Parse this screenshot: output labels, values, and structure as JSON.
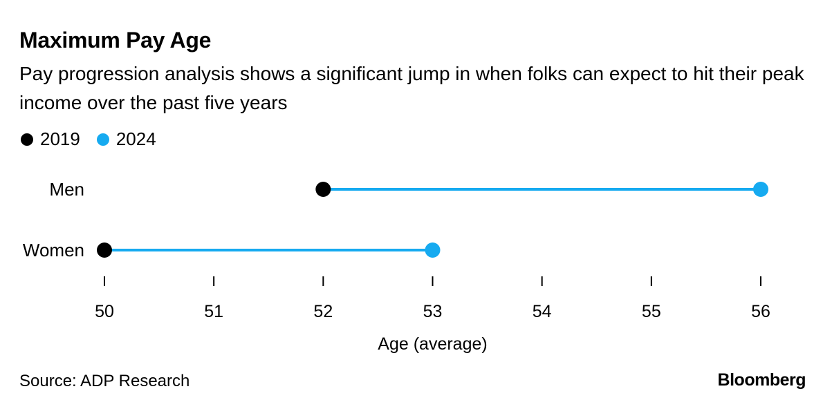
{
  "header": {
    "title": "Maximum Pay Age",
    "subtitle": "Pay progression analysis shows a significant jump in when folks can expect to hit their peak income over the past five years"
  },
  "legend": [
    {
      "label": "2019",
      "color": "#000000"
    },
    {
      "label": "2024",
      "color": "#16aaf0"
    }
  ],
  "chart_data": {
    "type": "dot-plot",
    "categories": [
      "Men",
      "Women"
    ],
    "series": [
      {
        "name": "2019",
        "values": [
          52,
          50
        ],
        "color": "#000000"
      },
      {
        "name": "2024",
        "values": [
          56,
          53
        ],
        "color": "#16aaf0"
      }
    ],
    "connector_color": "#16aaf0",
    "xlabel": "Age (average)",
    "xlim": [
      50,
      56
    ],
    "xticks": [
      50,
      51,
      52,
      53,
      54,
      55,
      56
    ],
    "grid": false,
    "legend_position": "top-left"
  },
  "footer": {
    "source": "Source: ADP Research",
    "brand": "Bloomberg"
  }
}
